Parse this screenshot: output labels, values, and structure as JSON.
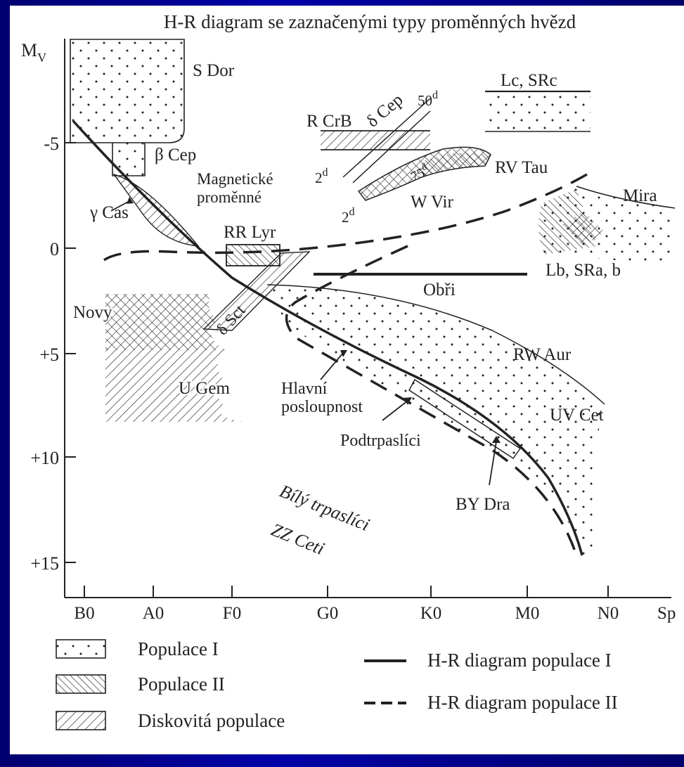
{
  "title": "H-R diagram se zaznačenými typy proměnných hvězd",
  "y_axis": {
    "label": "M",
    "label_sub": "V",
    "ticks": [
      "-5",
      "0",
      "+5",
      "+10",
      "+15"
    ]
  },
  "x_axis": {
    "ticks": [
      "B0",
      "A0",
      "F0",
      "G0",
      "K0",
      "M0",
      "N0",
      "Sp"
    ]
  },
  "regions": {
    "s_dor": "S Dor",
    "beta_cep": "β Cep",
    "gamma_cas": "γ Cas",
    "magneticke_1": "Magnetické",
    "magneticke_2": "proměnné",
    "rr_lyr": "RR Lyr",
    "delta_sct": "δ Sct",
    "novy": "Novy",
    "u_gem": "U Gem",
    "r_crb": "R CrB",
    "delta_cep": "δ Cep",
    "p50": "50",
    "p2a": "2",
    "p75": "75",
    "p2b": "2",
    "sup_d": "d",
    "rv_tau": "RV Tau",
    "w_vir": "W Vir",
    "lc_src": "Lc, SRc",
    "mira": "Mira",
    "lb_sra": "Lb, SRa, b",
    "obri": "Obři",
    "rw_aur": "RW Aur",
    "uv_cet": "UV Cet",
    "hlavni_1": "Hlavní",
    "hlavni_2": "posloupnost",
    "podtrpaslici": "Podtrpaslíci",
    "by_dra": "BY Dra",
    "bily_1": "Bílý trpaslíci",
    "zz_ceti": "ZZ Ceti"
  },
  "legend": {
    "pop1": "Populace I",
    "pop2": "Populace II",
    "disk": "Diskovitá populace",
    "line_pop1": "H-R diagram populace I",
    "line_pop2": "H-R diagram populace II"
  },
  "colors": {
    "frame": "#00007a",
    "ink": "#222222"
  }
}
